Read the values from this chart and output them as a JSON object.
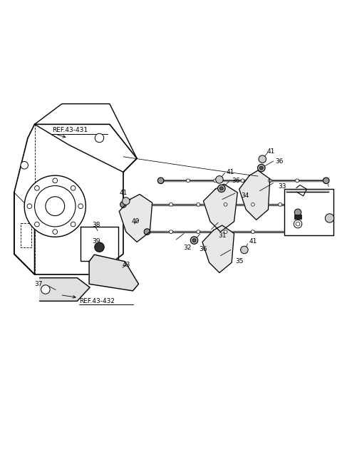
{
  "bg_color": "#ffffff",
  "line_color": "#000000",
  "fig_width": 4.8,
  "fig_height": 6.55,
  "dpi": 100
}
